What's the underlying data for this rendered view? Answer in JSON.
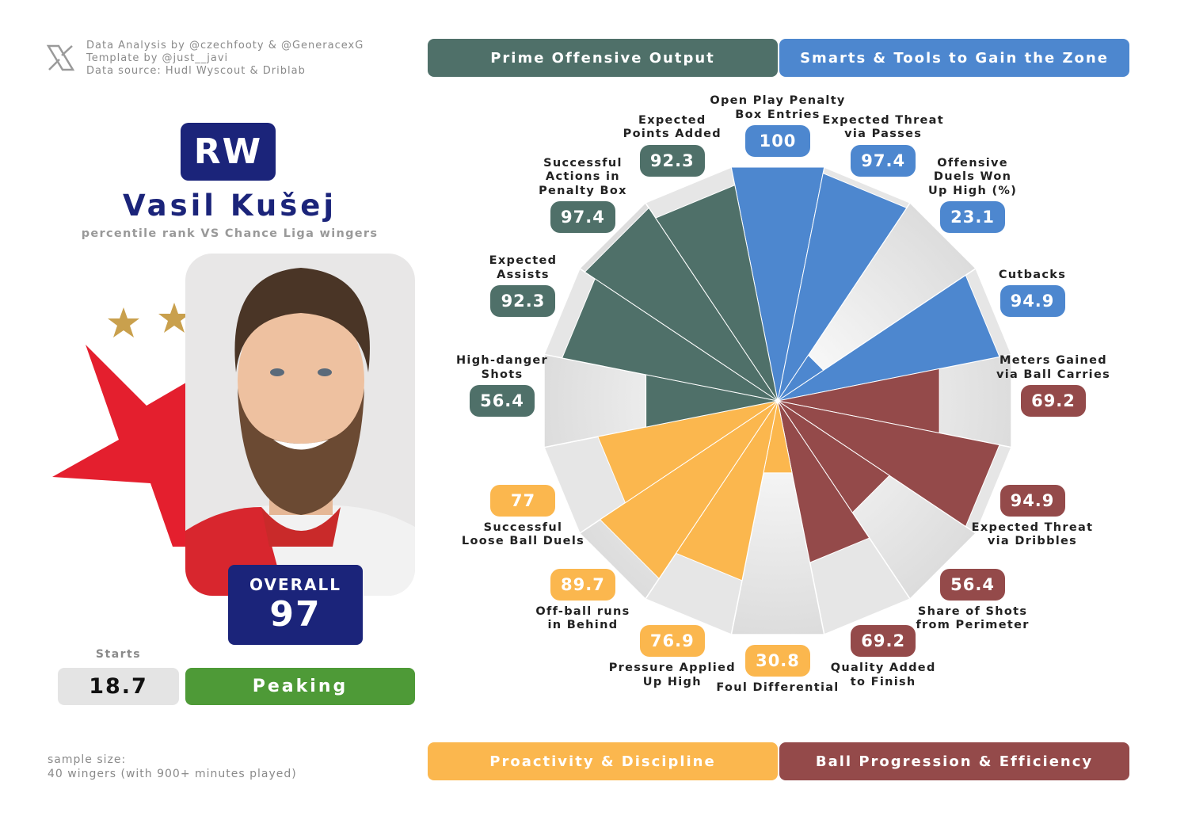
{
  "credits": [
    "Data Analysis by @czechfooty & @GeneracexG",
    "Template by @just__javi",
    "Data source: Hudl Wyscout & Driblab"
  ],
  "player": {
    "position": "RW",
    "name": "Vasil Kušej",
    "subtitle": "percentile rank VS Chance Liga wingers",
    "overall_label": "OVERALL",
    "overall": 97,
    "starts_label": "Starts",
    "starts": 18.7,
    "form": "Peaking"
  },
  "footer": [
    "sample size:",
    "40 wingers (with 900+ minutes played)"
  ],
  "chart_data": {
    "type": "polar-bar",
    "rlim": [
      0,
      100
    ],
    "groups": [
      {
        "name": "Smarts & Tools to Gain the Zone",
        "color": "#4d87cf",
        "categories": [
          "Open Play Penalty\nBox Entries",
          "Expected Threat\nvia Passes",
          "Offensive\nDuels Won\nUp High (%)",
          "Cutbacks"
        ],
        "values": [
          100,
          97.4,
          23.1,
          94.9
        ]
      },
      {
        "name": "Ball Progression & Efficiency",
        "color": "#944a4a",
        "categories": [
          "Meters Gained\nvia Ball Carries",
          "Expected Threat\nvia Dribbles",
          "Share of Shots\nfrom Perimeter",
          "Quality Added\nto Finish"
        ],
        "values": [
          69.2,
          94.9,
          56.4,
          69.2
        ]
      },
      {
        "name": "Proactivity & Discipline",
        "color": "#fbb74e",
        "categories": [
          "Foul Differential",
          "Pressure Applied\nUp High",
          "Off-ball runs\nin Behind",
          "Successful\nLoose Ball Duels"
        ],
        "values": [
          30.8,
          76.9,
          89.7,
          77
        ]
      },
      {
        "name": "Prime Offensive Output",
        "color": "#4f7069",
        "categories": [
          "High-danger\nShots",
          "Expected\nAssists",
          "Successful\nActions in\nPenalty Box",
          "Expected\nPoints Added"
        ],
        "values": [
          56.4,
          92.3,
          97.4,
          92.3
        ]
      }
    ]
  }
}
